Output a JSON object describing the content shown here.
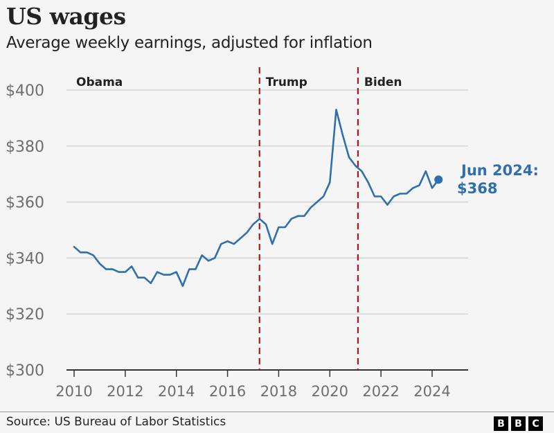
{
  "header": {
    "title": "US wages",
    "subtitle": "Average weekly earnings, adjusted for inflation"
  },
  "footer": {
    "source": "Source: US Bureau of Labor Statistics",
    "logo_letters": [
      "B",
      "B",
      "C"
    ]
  },
  "colors": {
    "line": "#2f6fad",
    "era_divider": "#b5121b",
    "grid": "#cccccc",
    "axis": "#333333"
  },
  "chart_data": {
    "type": "line",
    "title": "US wages",
    "subtitle": "Average weekly earnings, adjusted for inflation",
    "xlabel": "",
    "ylabel": "",
    "xlim": [
      2009.6,
      2025.1
    ],
    "ylim": [
      300,
      400
    ],
    "grid": true,
    "y_ticks": [
      300,
      320,
      340,
      360,
      380,
      400
    ],
    "y_tick_labels": [
      "$300",
      "$320",
      "$340",
      "$360",
      "$380",
      "$400"
    ],
    "x_ticks": [
      2010,
      2012,
      2014,
      2016,
      2018,
      2020,
      2022,
      2024
    ],
    "x_tick_labels": [
      "2010",
      "2012",
      "2014",
      "2016",
      "2018",
      "2020",
      "2022",
      "2024"
    ],
    "eras": [
      {
        "label": "Obama",
        "start": 2009.6
      },
      {
        "label": "Trump",
        "start": 2017.25
      },
      {
        "label": "Biden",
        "start": 2021.1
      }
    ],
    "dividers": [
      2017.25,
      2021.1
    ],
    "series": [
      {
        "name": "Average weekly earnings",
        "x": [
          2010.0,
          2010.25,
          2010.5,
          2010.75,
          2011.0,
          2011.25,
          2011.5,
          2011.75,
          2012.0,
          2012.25,
          2012.5,
          2012.75,
          2013.0,
          2013.25,
          2013.5,
          2013.75,
          2014.0,
          2014.25,
          2014.5,
          2014.75,
          2015.0,
          2015.25,
          2015.5,
          2015.75,
          2016.0,
          2016.25,
          2016.5,
          2016.75,
          2017.0,
          2017.25,
          2017.5,
          2017.75,
          2018.0,
          2018.25,
          2018.5,
          2018.75,
          2019.0,
          2019.25,
          2019.5,
          2019.75,
          2020.0,
          2020.25,
          2020.5,
          2020.75,
          2021.0,
          2021.25,
          2021.5,
          2021.75,
          2022.0,
          2022.25,
          2022.5,
          2022.75,
          2023.0,
          2023.25,
          2023.5,
          2023.75,
          2024.0,
          2024.25
        ],
        "values": [
          344,
          342,
          342,
          341,
          338,
          336,
          336,
          335,
          335,
          337,
          333,
          333,
          331,
          335,
          334,
          334,
          335,
          330,
          336,
          336,
          341,
          339,
          340,
          345,
          346,
          345,
          347,
          349,
          352,
          354,
          352,
          345,
          351,
          351,
          354,
          355,
          355,
          358,
          360,
          362,
          367,
          393,
          384,
          376,
          373,
          371,
          367,
          362,
          362,
          359,
          362,
          363,
          363,
          365,
          366,
          371,
          365,
          368
        ]
      }
    ],
    "annotations": [
      {
        "text": "Jun 2024:",
        "value_text": "$368",
        "x": 2024.25,
        "y": 368
      }
    ],
    "source": "Source: US Bureau of Labor Statistics"
  }
}
